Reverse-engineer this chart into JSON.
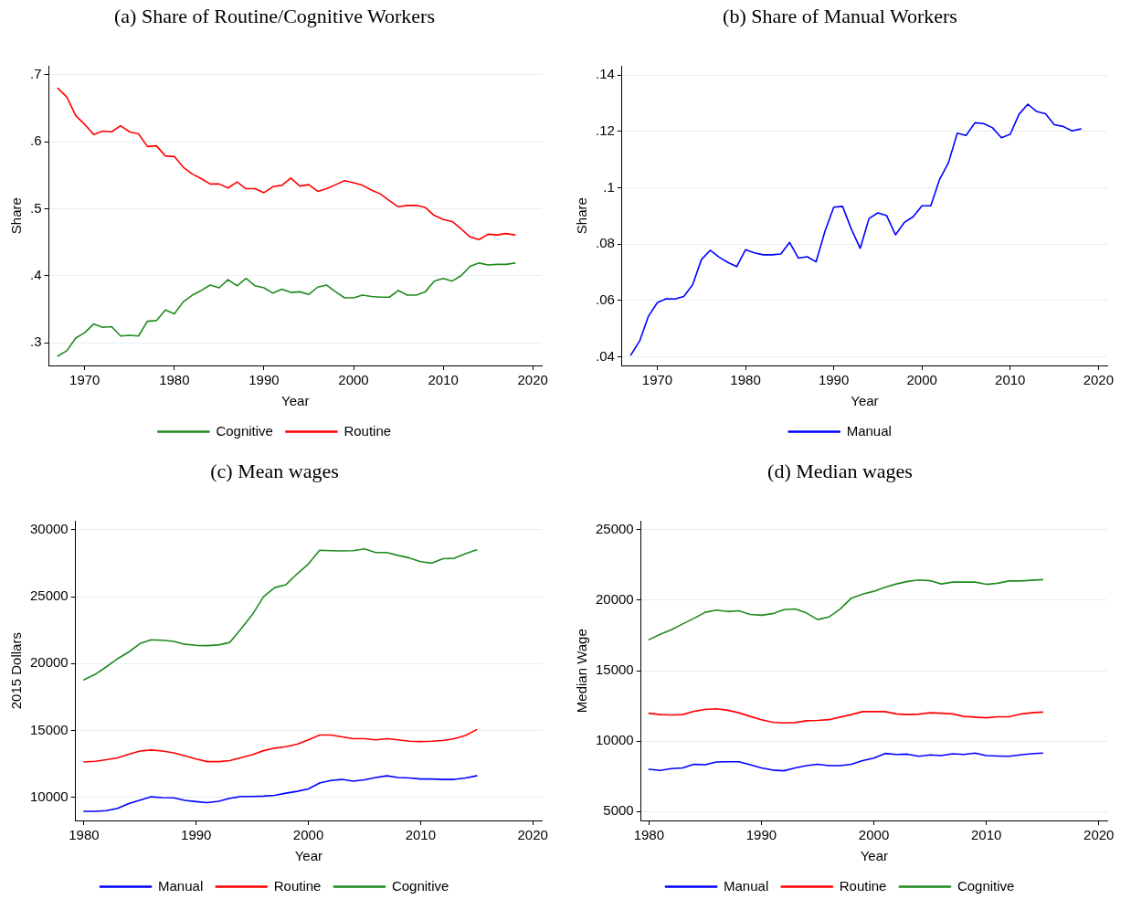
{
  "chart_data": [
    {
      "type": "line",
      "title": "(a) Share of Routine/Cognitive Workers",
      "xlabel": "Year",
      "ylabel": "Share",
      "grid": "y",
      "legend": "bottom",
      "marker": "none",
      "line_style": "solid",
      "x": [
        1967,
        1968,
        1969,
        1970,
        1971,
        1972,
        1973,
        1974,
        1975,
        1976,
        1977,
        1978,
        1979,
        1980,
        1981,
        1982,
        1983,
        1984,
        1985,
        1986,
        1987,
        1988,
        1989,
        1990,
        1991,
        1992,
        1993,
        1994,
        1995,
        1996,
        1997,
        1998,
        1999,
        2000,
        2001,
        2002,
        2003,
        2004,
        2005,
        2006,
        2007,
        2008,
        2009,
        2010,
        2011,
        2012,
        2013,
        2014,
        2015,
        2016,
        2017,
        2018
      ],
      "xlim": [
        1966,
        2021
      ],
      "xticks": [
        1970,
        1980,
        1990,
        2000,
        2010,
        2020
      ],
      "ylim": [
        0.266,
        0.713
      ],
      "yticks": [
        {
          "value": 0.3,
          "label": ".3"
        },
        {
          "value": 0.4,
          "label": ".4"
        },
        {
          "value": 0.5,
          "label": ".5"
        },
        {
          "value": 0.6,
          "label": ".6"
        },
        {
          "value": 0.7,
          "label": ".7"
        }
      ],
      "series": [
        {
          "name": "Cognitive",
          "color": "#1f8b1f",
          "values": [
            0.28,
            0.288,
            0.307,
            0.315,
            0.328,
            0.323,
            0.324,
            0.31,
            0.311,
            0.31,
            0.332,
            0.333,
            0.349,
            0.343,
            0.361,
            0.371,
            0.378,
            0.386,
            0.382,
            0.394,
            0.385,
            0.396,
            0.385,
            0.382,
            0.374,
            0.38,
            0.375,
            0.376,
            0.372,
            0.383,
            0.386,
            0.376,
            0.367,
            0.367,
            0.371,
            0.369,
            0.368,
            0.368,
            0.378,
            0.371,
            0.371,
            0.376,
            0.392,
            0.396,
            0.392,
            0.4,
            0.414,
            0.419,
            0.416,
            0.417,
            0.417,
            0.419
          ]
        },
        {
          "name": "Routine",
          "color": "#ff0000",
          "values": [
            0.68,
            0.667,
            0.639,
            0.626,
            0.611,
            0.616,
            0.615,
            0.624,
            0.615,
            0.612,
            0.593,
            0.594,
            0.579,
            0.578,
            0.562,
            0.552,
            0.545,
            0.537,
            0.537,
            0.531,
            0.54,
            0.53,
            0.53,
            0.524,
            0.533,
            0.535,
            0.546,
            0.534,
            0.536,
            0.526,
            0.53,
            0.536,
            0.542,
            0.539,
            0.535,
            0.528,
            0.522,
            0.512,
            0.503,
            0.505,
            0.505,
            0.502,
            0.49,
            0.484,
            0.481,
            0.47,
            0.458,
            0.454,
            0.462,
            0.461,
            0.463,
            0.461
          ]
        }
      ]
    },
    {
      "type": "line",
      "title": "(b) Share of Manual Workers",
      "xlabel": "Year",
      "ylabel": "Share",
      "grid": "y",
      "legend": "bottom",
      "marker": "none",
      "line_style": "solid",
      "x": [
        1967,
        1968,
        1969,
        1970,
        1971,
        1972,
        1973,
        1974,
        1975,
        1976,
        1977,
        1978,
        1979,
        1980,
        1981,
        1982,
        1983,
        1984,
        1985,
        1986,
        1987,
        1988,
        1989,
        1990,
        1991,
        1992,
        1993,
        1994,
        1995,
        1996,
        1997,
        1998,
        1999,
        2000,
        2001,
        2002,
        2003,
        2004,
        2005,
        2006,
        2007,
        2008,
        2009,
        2010,
        2011,
        2012,
        2013,
        2014,
        2015,
        2016,
        2017,
        2018
      ],
      "xlim": [
        1966,
        2021
      ],
      "xticks": [
        1970,
        1980,
        1990,
        2000,
        2010,
        2020
      ],
      "ylim": [
        0.0369,
        0.1432
      ],
      "yticks": [
        {
          "value": 0.04,
          "label": ".04"
        },
        {
          "value": 0.06,
          "label": ".06"
        },
        {
          "value": 0.08,
          "label": ".08"
        },
        {
          "value": 0.1,
          "label": ".1"
        },
        {
          "value": 0.12,
          "label": ".12"
        },
        {
          "value": 0.14,
          "label": ".14"
        }
      ],
      "series": [
        {
          "name": "Manual",
          "color": "#0000ff",
          "values": [
            0.0406,
            0.0456,
            0.0544,
            0.0592,
            0.0606,
            0.0605,
            0.0614,
            0.0655,
            0.0745,
            0.0778,
            0.0754,
            0.0735,
            0.072,
            0.078,
            0.0769,
            0.0762,
            0.0762,
            0.0765,
            0.0806,
            0.075,
            0.0755,
            0.0737,
            0.0845,
            0.0931,
            0.0934,
            0.0853,
            0.0785,
            0.0891,
            0.0911,
            0.0901,
            0.0833,
            0.0877,
            0.0897,
            0.0936,
            0.0936,
            0.103,
            0.1089,
            0.1194,
            0.1186,
            0.1231,
            0.1228,
            0.1213,
            0.1178,
            0.119,
            0.1261,
            0.1297,
            0.1271,
            0.1263,
            0.1224,
            0.1218,
            0.1202,
            0.1209
          ]
        }
      ]
    },
    {
      "type": "line",
      "title": "(c) Mean wages",
      "xlabel": "Year",
      "ylabel": "2015 Dollars",
      "grid": "y",
      "legend": "bottom",
      "marker": "none",
      "line_style": "solid",
      "x": [
        1980,
        1981,
        1982,
        1983,
        1984,
        1985,
        1986,
        1987,
        1988,
        1989,
        1990,
        1991,
        1992,
        1993,
        1994,
        1995,
        1996,
        1997,
        1998,
        1999,
        2000,
        2001,
        2002,
        2003,
        2004,
        2005,
        2006,
        2007,
        2008,
        2009,
        2010,
        2011,
        2012,
        2013,
        2014,
        2015
      ],
      "xlim": [
        1979.25,
        2020.8
      ],
      "xticks": [
        1980,
        1990,
        2000,
        2010,
        2020
      ],
      "ylim": [
        8260,
        30650
      ],
      "yticks": [
        10000,
        15000,
        20000,
        25000,
        30000
      ],
      "series": [
        {
          "name": "Manual",
          "color": "#0000ff",
          "values": [
            8940,
            8940,
            9000,
            9160,
            9520,
            9780,
            10030,
            9970,
            9950,
            9760,
            9670,
            9590,
            9700,
            9920,
            10050,
            10050,
            10080,
            10140,
            10300,
            10440,
            10620,
            11060,
            11250,
            11330,
            11200,
            11300,
            11470,
            11600,
            11470,
            11440,
            11360,
            11360,
            11330,
            11330,
            11440,
            11600
          ]
        },
        {
          "name": "Routine",
          "color": "#ff0000",
          "values": [
            12630,
            12690,
            12800,
            12940,
            13210,
            13450,
            13530,
            13450,
            13320,
            13100,
            12860,
            12660,
            12660,
            12740,
            12960,
            13180,
            13480,
            13670,
            13780,
            13970,
            14290,
            14650,
            14650,
            14510,
            14380,
            14380,
            14290,
            14380,
            14290,
            14190,
            14160,
            14190,
            14240,
            14380,
            14620,
            15050
          ]
        },
        {
          "name": "Cognitive",
          "color": "#1f8b1f",
          "values": [
            18780,
            19190,
            19760,
            20360,
            20870,
            21500,
            21770,
            21740,
            21660,
            21440,
            21360,
            21340,
            21390,
            21580,
            22590,
            23650,
            25000,
            25680,
            25900,
            26710,
            27440,
            28470,
            28440,
            28420,
            28440,
            28570,
            28300,
            28300,
            28090,
            27900,
            27620,
            27510,
            27840,
            27870,
            28220,
            28510
          ]
        }
      ]
    },
    {
      "type": "line",
      "title": "(d) Median wages",
      "xlabel": "Year",
      "ylabel": "Median Wage",
      "grid": "y",
      "legend": "bottom",
      "marker": "none",
      "line_style": "solid",
      "x": [
        1980,
        1981,
        1982,
        1983,
        1984,
        1985,
        1986,
        1987,
        1988,
        1989,
        1990,
        1991,
        1992,
        1993,
        1994,
        1995,
        1996,
        1997,
        1998,
        1999,
        2000,
        2001,
        2002,
        2003,
        2004,
        2005,
        2006,
        2007,
        2008,
        2009,
        2010,
        2011,
        2012,
        2013,
        2014,
        2015
      ],
      "xlim": [
        1979.3,
        2020.75
      ],
      "xticks": [
        1980,
        1990,
        2000,
        2010,
        2020
      ],
      "ylim": [
        4360,
        25620
      ],
      "yticks": [
        5000,
        10000,
        15000,
        20000,
        25000
      ],
      "series": [
        {
          "name": "Manual",
          "color": "#0000ff",
          "values": [
            7990,
            7910,
            8040,
            8090,
            8350,
            8320,
            8510,
            8530,
            8530,
            8320,
            8090,
            7940,
            7890,
            8090,
            8250,
            8350,
            8250,
            8250,
            8350,
            8610,
            8790,
            9120,
            9050,
            9070,
            8920,
            9020,
            8970,
            9100,
            9050,
            9150,
            8970,
            8940,
            8920,
            9020,
            9100,
            9150
          ]
        },
        {
          "name": "Routine",
          "color": "#ff0000",
          "values": [
            11980,
            11880,
            11860,
            11880,
            12110,
            12240,
            12290,
            12190,
            12010,
            11750,
            11520,
            11340,
            11290,
            11310,
            11440,
            11470,
            11520,
            11700,
            11880,
            12090,
            12090,
            12090,
            11930,
            11880,
            11910,
            12010,
            11980,
            11930,
            11750,
            11700,
            11650,
            11730,
            11730,
            11910,
            12010,
            12060
          ]
        },
        {
          "name": "Cognitive",
          "color": "#1f8b1f",
          "values": [
            17200,
            17580,
            17910,
            18320,
            18710,
            19150,
            19300,
            19200,
            19250,
            18990,
            18940,
            19050,
            19330,
            19380,
            19100,
            18630,
            18810,
            19380,
            20150,
            20440,
            20640,
            20930,
            21160,
            21340,
            21440,
            21390,
            21160,
            21290,
            21290,
            21290,
            21130,
            21210,
            21370,
            21370,
            21420,
            21470
          ]
        }
      ]
    }
  ]
}
